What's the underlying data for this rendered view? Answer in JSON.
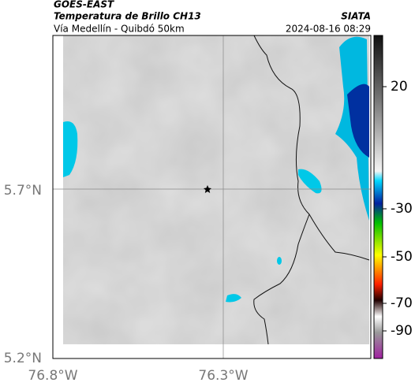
{
  "header": {
    "title": "GOES-EAST",
    "subtitle": "Temperatura de Brillo CH13",
    "route": "Vía Medellín - Quibdó 50km",
    "source": "SIATA",
    "datetime": "2024-08-16 08:29"
  },
  "map": {
    "lat_ticks": [
      "5.7°N",
      "5.2°N"
    ],
    "lon_ticks": [
      "76.8°W",
      "76.3°W"
    ]
  },
  "colorbar": {
    "ticks": [
      20,
      -30,
      -50,
      -70,
      -90
    ]
  }
}
